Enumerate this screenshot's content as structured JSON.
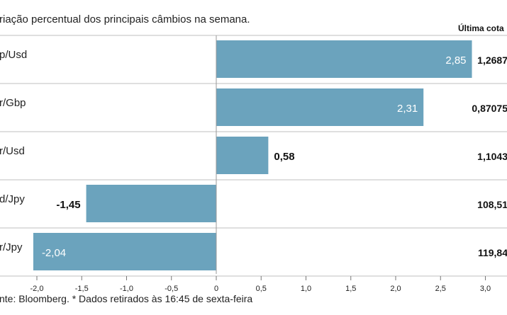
{
  "chart_data": {
    "type": "bar",
    "orientation": "horizontal",
    "subtitle": "riação percentual dos principais câmbios na semana.",
    "column_header": "Última cota",
    "categories": [
      "p/Usd",
      "r/Gbp",
      "r/Usd",
      "d/Jpy",
      "r/Jpy"
    ],
    "values": [
      2.85,
      2.31,
      0.58,
      -1.45,
      -2.04
    ],
    "value_labels": [
      "2,85",
      "2,31",
      "0,58",
      "-1,45",
      "-2,04"
    ],
    "last_quote": [
      "1,2687",
      "0,87075",
      "1,1043",
      "108,51",
      "119,84"
    ],
    "xlim": [
      -2.0,
      3.0
    ],
    "xticks": [
      -2.0,
      -1.5,
      -1.0,
      -0.5,
      0.0,
      0.5,
      1.0,
      1.5,
      2.0,
      2.5,
      3.0
    ],
    "xtick_labels": [
      "-2,0",
      "-1,5",
      "-1,0",
      "-0,5",
      "0",
      "0,5",
      "1,0",
      "1,5",
      "2,0",
      "2,5",
      "3,0"
    ],
    "footnote": "nte: Bloomberg.  * Dados retirados às 16:45 de sexta-feira",
    "bar_color": "#6ba3bd",
    "grid_color": "#bfbfbf"
  }
}
